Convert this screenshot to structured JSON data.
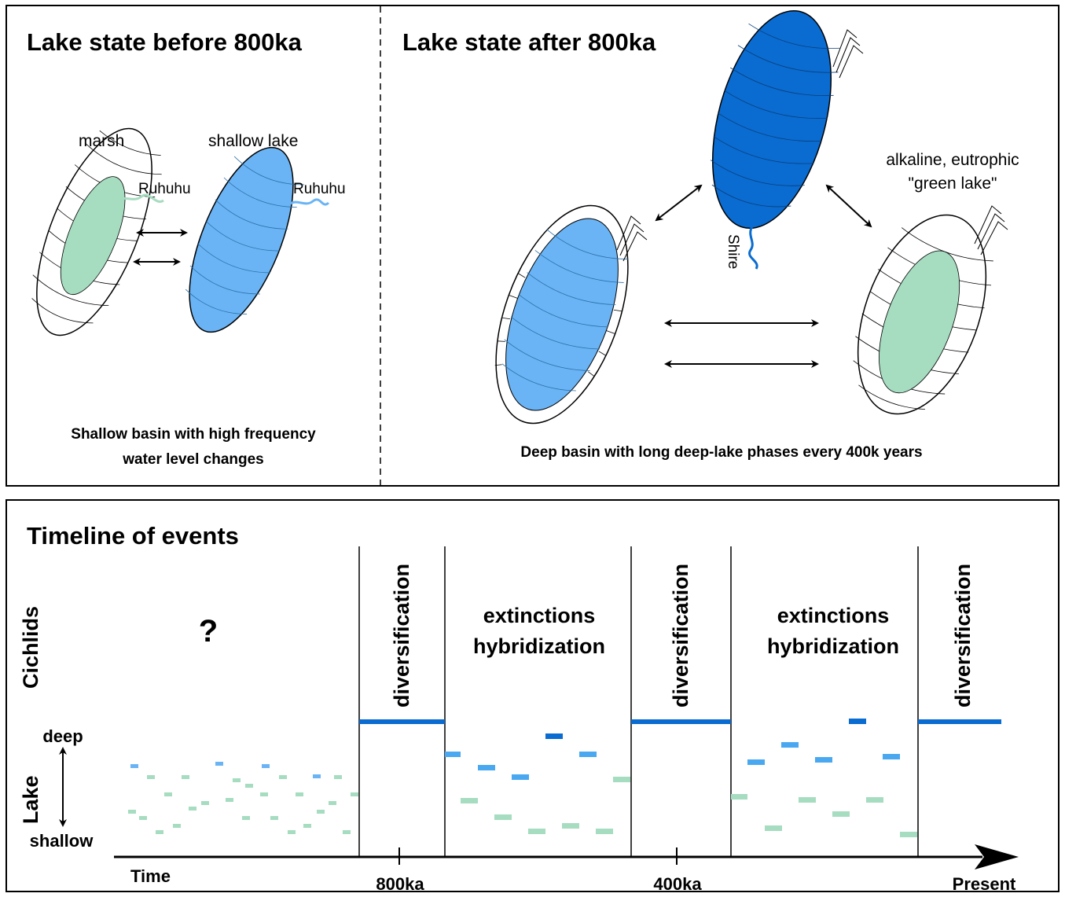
{
  "top_left": {
    "title": "Lake state before 800ka",
    "label_marsh": "marsh",
    "label_shallow": "shallow lake",
    "river1": "Ruhuhu",
    "river2": "Ruhuhu",
    "summary_line1": "Shallow basin with high frequency",
    "summary_line2": "water level changes"
  },
  "top_right": {
    "title": "Lake state after 800ka",
    "river": "Shire",
    "green_label1": "alkaline, eutrophic",
    "green_label2": "\"green lake\"",
    "summary": "Deep basin with long deep-lake phases every 400k years"
  },
  "timeline": {
    "title": "Timeline of events",
    "row_cichlids": "Cichlids",
    "row_lake": "Lake",
    "deep": "deep",
    "shallow": "shallow",
    "unknown": "?",
    "diversification": "diversification",
    "extinctions": "extinctions",
    "hybridization": "hybridization",
    "x_time": "Time",
    "x_800": "800ka",
    "x_400": "400ka",
    "x_present": "Present"
  },
  "colors": {
    "deep_blue": "#0a6bd0",
    "light_blue": "#6ab4f5",
    "mid_blue": "#4aa8f0",
    "green": "#a6dcc0"
  }
}
